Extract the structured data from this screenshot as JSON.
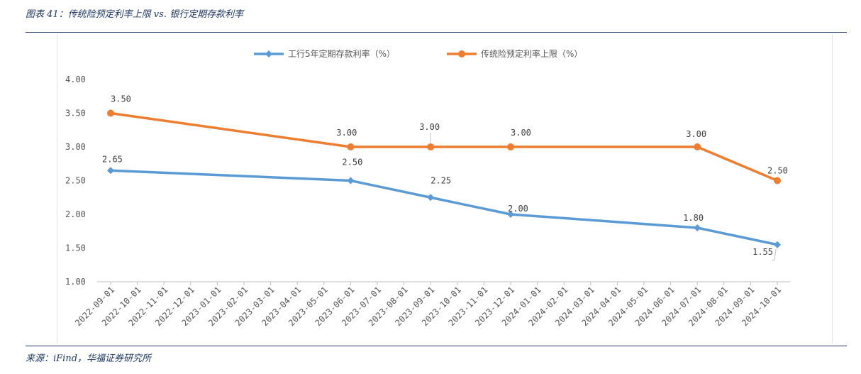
{
  "figure": {
    "title": "图表 41：传统险预定利率上限 vs. 银行定期存款利率",
    "source": "来源：iFind，华福证券研究所"
  },
  "chart_data": {
    "type": "line",
    "categories": [
      "2022-09-01",
      "2022-10-01",
      "2022-11-01",
      "2022-12-01",
      "2023-01-01",
      "2023-02-01",
      "2023-03-01",
      "2023-04-01",
      "2023-05-01",
      "2023-06-01",
      "2023-07-01",
      "2023-08-01",
      "2023-09-01",
      "2023-10-01",
      "2023-11-01",
      "2023-12-01",
      "2024-01-01",
      "2024-02-01",
      "2024-03-01",
      "2024-04-01",
      "2024-05-01",
      "2024-06-01",
      "2024-07-01",
      "2024-08-01",
      "2024-09-01",
      "2024-10-01"
    ],
    "ylim": [
      1.0,
      4.0
    ],
    "yticks": [
      "1.00",
      "1.50",
      "2.00",
      "2.50",
      "3.00",
      "3.50",
      "4.00"
    ],
    "series": [
      {
        "name": "工行5年定期存款利率（%）",
        "color": "#5b9bd5",
        "marker": "diamond",
        "points": [
          {
            "x": "2022-09-01",
            "y": 2.65,
            "label": "2.65"
          },
          {
            "x": "2023-06-01",
            "y": 2.5,
            "label": "2.50"
          },
          {
            "x": "2023-09-01",
            "y": 2.25,
            "label": "2.25"
          },
          {
            "x": "2023-12-01",
            "y": 2.0,
            "label": "2.00"
          },
          {
            "x": "2024-07-01",
            "y": 1.8,
            "label": "1.80"
          },
          {
            "x": "2024-10-01",
            "y": 1.55,
            "label": "1.55"
          }
        ]
      },
      {
        "name": "传统险预定利率上限（%）",
        "color": "#ed7d31",
        "marker": "circle",
        "points": [
          {
            "x": "2022-09-01",
            "y": 3.5,
            "label": "3.50"
          },
          {
            "x": "2023-06-01",
            "y": 3.0,
            "label": "3.00"
          },
          {
            "x": "2023-09-01",
            "y": 3.0,
            "label": "3.00"
          },
          {
            "x": "2023-12-01",
            "y": 3.0,
            "label": "3.00"
          },
          {
            "x": "2024-07-01",
            "y": 3.0,
            "label": "3.00"
          },
          {
            "x": "2024-10-01",
            "y": 2.5,
            "label": "2.50"
          }
        ]
      }
    ],
    "grid": false,
    "legend_position": "top"
  }
}
